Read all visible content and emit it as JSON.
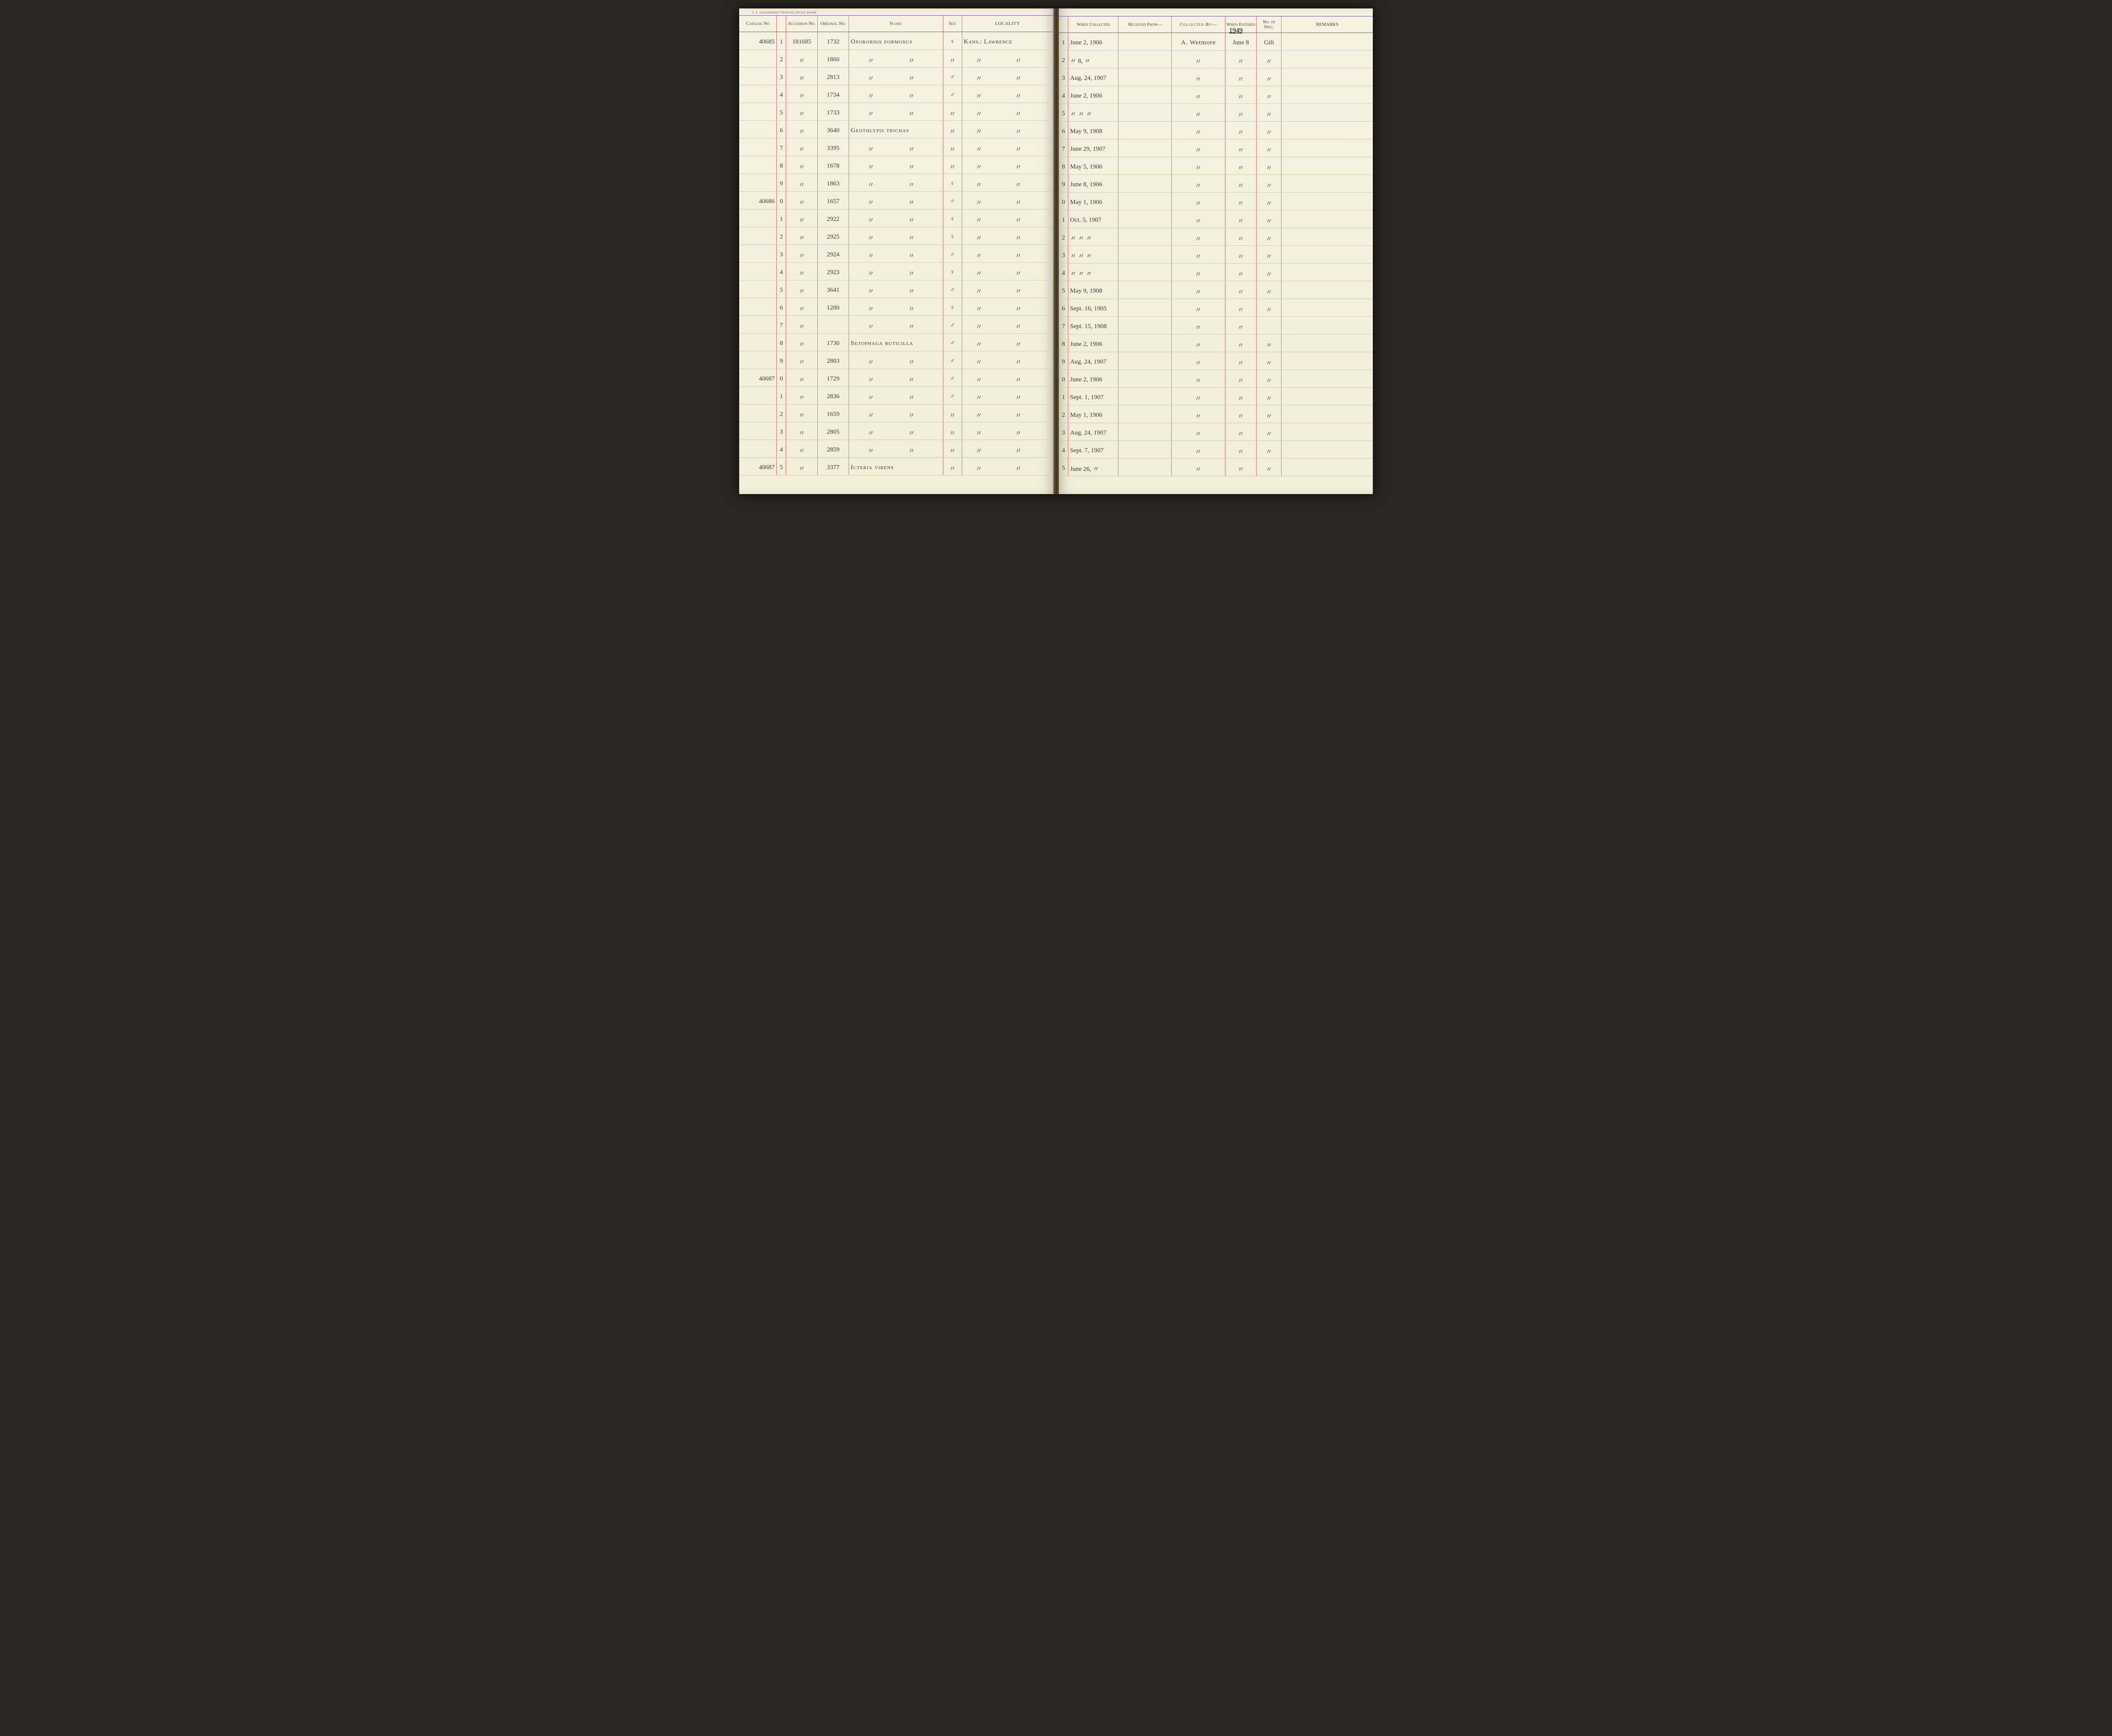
{
  "imprint": "U. S. GOVERNMENT PRINTING OFFICE    864998",
  "colors": {
    "paper": "#f4f0e0",
    "col_rule": "#d96a6a",
    "row_rule": "#a8d4d8",
    "header_rule": "#7a4a9a",
    "ink": "#3a3a3a"
  },
  "headers_left": {
    "catalog": "Catalog No",
    "accession": "Accession No.",
    "original": "Original No.",
    "name": "Name",
    "sex": "Sex",
    "locality": "LOCALITY"
  },
  "headers_right": {
    "when": "When Collected",
    "received": "Received From—",
    "collected": "Collected By—",
    "entered": "When Entered",
    "spec": "No. of Spec.",
    "remarks": "REMARKS"
  },
  "year_entered": "1949",
  "rows": [
    {
      "catalog": "40685",
      "sub": "1",
      "accession": "181685",
      "original": "1732",
      "name": "Oporornis  formosus",
      "sex": "♀",
      "locality": "Kans.:  Lawrence",
      "when": "June 2, 1906",
      "received": "",
      "collected": "A. Wetmore",
      "entered": "June 8",
      "spec": "Gift",
      "remarks": ""
    },
    {
      "catalog": "",
      "sub": "2",
      "accession": "〃",
      "original": "1860",
      "name": "〃",
      "name2": "〃",
      "sex": "〃",
      "locality": "〃",
      "locality2": "〃",
      "when": "〃  8, 〃",
      "received": "",
      "collected": "〃",
      "entered": "〃",
      "spec": "〃",
      "remarks": ""
    },
    {
      "catalog": "",
      "sub": "3",
      "accession": "〃",
      "original": "2813",
      "name": "〃",
      "name2": "〃",
      "sex": "♂",
      "locality": "〃",
      "locality2": "〃",
      "when": "Aug. 24, 1907",
      "received": "",
      "collected": "〃",
      "entered": "〃",
      "spec": "〃",
      "remarks": ""
    },
    {
      "catalog": "",
      "sub": "4",
      "accession": "〃",
      "original": "1734",
      "name": "〃",
      "name2": "〃",
      "sex": "♂",
      "locality": "〃",
      "locality2": "〃",
      "when": "June 2, 1906",
      "received": "",
      "collected": "〃",
      "entered": "〃",
      "spec": "〃",
      "remarks": ""
    },
    {
      "catalog": "",
      "sub": "5",
      "accession": "〃",
      "original": "1733",
      "name": "〃",
      "name2": "〃",
      "sex": "〃",
      "locality": "〃",
      "locality2": "〃",
      "when": "〃   〃   〃",
      "received": "",
      "collected": "〃",
      "entered": "〃",
      "spec": "〃",
      "remarks": ""
    },
    {
      "catalog": "",
      "sub": "6",
      "accession": "〃",
      "original": "3640",
      "name": "Geothlypis  trichas",
      "sex": "〃",
      "locality": "〃",
      "locality2": "〃",
      "when": "May 9, 1908",
      "received": "",
      "collected": "〃",
      "entered": "〃",
      "spec": "〃",
      "remarks": ""
    },
    {
      "catalog": "",
      "sub": "7",
      "accession": "〃",
      "original": "3395",
      "name": "〃",
      "name2": "〃",
      "sex": "〃",
      "locality": "〃",
      "locality2": "〃",
      "when": "June 29, 1907",
      "received": "",
      "collected": "〃",
      "entered": "〃",
      "spec": "〃",
      "remarks": ""
    },
    {
      "catalog": "",
      "sub": "8",
      "accession": "〃",
      "original": "1678",
      "name": "〃",
      "name2": "〃",
      "sex": "〃",
      "locality": "〃",
      "locality2": "〃",
      "when": "May 5, 1906",
      "received": "",
      "collected": "〃",
      "entered": "〃",
      "spec": "〃",
      "remarks": ""
    },
    {
      "catalog": "",
      "sub": "9",
      "accession": "〃",
      "original": "1863",
      "name": "〃",
      "name2": "〃",
      "sex": "♀",
      "locality": "〃",
      "locality2": "〃",
      "when": "June 8, 1906",
      "received": "",
      "collected": "〃",
      "entered": "〃",
      "spec": "〃",
      "remarks": ""
    },
    {
      "catalog": "40686",
      "sub": "0",
      "accession": "〃",
      "original": "1657",
      "name": "〃",
      "name2": "〃",
      "sex": "♂",
      "locality": "〃",
      "locality2": "〃",
      "when": "May 1, 1906",
      "received": "",
      "collected": "〃",
      "entered": "〃",
      "spec": "〃",
      "remarks": ""
    },
    {
      "catalog": "",
      "sub": "1",
      "accession": "〃",
      "original": "2922",
      "name": "〃",
      "name2": "〃",
      "sex": "♀",
      "locality": "〃",
      "locality2": "〃",
      "when": "Oct. 5, 1907",
      "received": "",
      "collected": "〃",
      "entered": "〃",
      "spec": "〃",
      "remarks": ""
    },
    {
      "catalog": "",
      "sub": "2",
      "accession": "〃",
      "original": "2925",
      "name": "〃",
      "name2": "〃",
      "sex": "♀",
      "locality": "〃",
      "locality2": "〃",
      "when": "〃   〃   〃",
      "received": "",
      "collected": "〃",
      "entered": "〃",
      "spec": "〃",
      "remarks": ""
    },
    {
      "catalog": "",
      "sub": "3",
      "accession": "〃",
      "original": "2924",
      "name": "〃",
      "name2": "〃",
      "sex": "♂",
      "locality": "〃",
      "locality2": "〃",
      "when": "〃   〃   〃",
      "received": "",
      "collected": "〃",
      "entered": "〃",
      "spec": "〃",
      "remarks": ""
    },
    {
      "catalog": "",
      "sub": "4",
      "accession": "〃",
      "original": "2923",
      "name": "〃",
      "name2": "〃",
      "sex": "♀",
      "locality": "〃",
      "locality2": "〃",
      "when": "〃   〃   〃",
      "received": "",
      "collected": "〃",
      "entered": "〃",
      "spec": "〃",
      "remarks": ""
    },
    {
      "catalog": "",
      "sub": "5",
      "accession": "〃",
      "original": "3641",
      "name": "〃",
      "name2": "〃",
      "sex": "♂",
      "locality": "〃",
      "locality2": "〃",
      "when": "May 9, 1908",
      "received": "",
      "collected": "〃",
      "entered": "〃",
      "spec": "〃",
      "remarks": ""
    },
    {
      "catalog": "",
      "sub": "6",
      "accession": "〃",
      "original": "1200",
      "name": "〃",
      "name2": "〃",
      "sex": "♀",
      "locality": "〃",
      "locality2": "〃",
      "when": "Sept. 16, 1905",
      "received": "",
      "collected": "〃",
      "entered": "〃",
      "spec": "〃",
      "remarks": ""
    },
    {
      "catalog": "",
      "sub": "7",
      "accession": "〃",
      "original": "",
      "name": "〃",
      "name2": "〃",
      "sex": "♂",
      "locality": "〃",
      "locality2": "〃",
      "when": "Sept. 15, 1908",
      "received": "",
      "collected": "〃",
      "entered": "〃",
      "spec": "",
      "remarks": ""
    },
    {
      "catalog": "",
      "sub": "8",
      "accession": "〃",
      "original": "1730",
      "name": "Setophaga  ruticilla",
      "sex": "♂",
      "locality": "〃",
      "locality2": "〃",
      "when": "June 2, 1906",
      "received": "",
      "collected": "〃",
      "entered": "〃",
      "spec": "〃",
      "remarks": ""
    },
    {
      "catalog": "",
      "sub": "9",
      "accession": "〃",
      "original": "2803",
      "name": "〃",
      "name2": "〃",
      "sex": "♂",
      "locality": "〃",
      "locality2": "〃",
      "when": "Aug. 24, 1907",
      "received": "",
      "collected": "〃",
      "entered": "〃",
      "spec": "〃",
      "remarks": ""
    },
    {
      "catalog": "40687",
      "sub": "0",
      "accession": "〃",
      "original": "1729",
      "name": "〃",
      "name2": "〃",
      "sex": "♂",
      "locality": "〃",
      "locality2": "〃",
      "when": "June 2, 1906",
      "received": "",
      "collected": "〃",
      "entered": "〃",
      "spec": "〃",
      "remarks": ""
    },
    {
      "catalog": "",
      "sub": "1",
      "accession": "〃",
      "original": "2836",
      "name": "〃",
      "name2": "〃",
      "sex": "♂",
      "locality": "〃",
      "locality2": "〃",
      "when": "Sept. 1, 1907",
      "received": "",
      "collected": "〃",
      "entered": "〃",
      "spec": "〃",
      "remarks": ""
    },
    {
      "catalog": "",
      "sub": "2",
      "accession": "〃",
      "original": "1659",
      "name": "〃",
      "name2": "〃",
      "sex": "〃",
      "locality": "〃",
      "locality2": "〃",
      "when": "May 1, 1906",
      "received": "",
      "collected": "〃",
      "entered": "〃",
      "spec": "〃",
      "remarks": ""
    },
    {
      "catalog": "",
      "sub": "3",
      "accession": "〃",
      "original": "2805",
      "name": "〃",
      "name2": "〃",
      "sex": "〃",
      "locality": "〃",
      "locality2": "〃",
      "when": "Aug. 24, 1907",
      "received": "",
      "collected": "〃",
      "entered": "〃",
      "spec": "〃",
      "remarks": ""
    },
    {
      "catalog": "",
      "sub": "4",
      "accession": "〃",
      "original": "2859",
      "name": "〃",
      "name2": "〃",
      "sex": "〃",
      "locality": "〃",
      "locality2": "〃",
      "when": "Sept. 7, 1907",
      "received": "",
      "collected": "〃",
      "entered": "〃",
      "spec": "〃",
      "remarks": ""
    },
    {
      "catalog": "40687",
      "sub": "5",
      "accession": "〃",
      "original": "3377",
      "name": "Icteria  virens",
      "sex": "〃",
      "locality": "〃",
      "locality2": "〃",
      "when": "June 26, 〃",
      "received": "",
      "collected": "〃",
      "entered": "〃",
      "spec": "〃",
      "remarks": ""
    }
  ]
}
